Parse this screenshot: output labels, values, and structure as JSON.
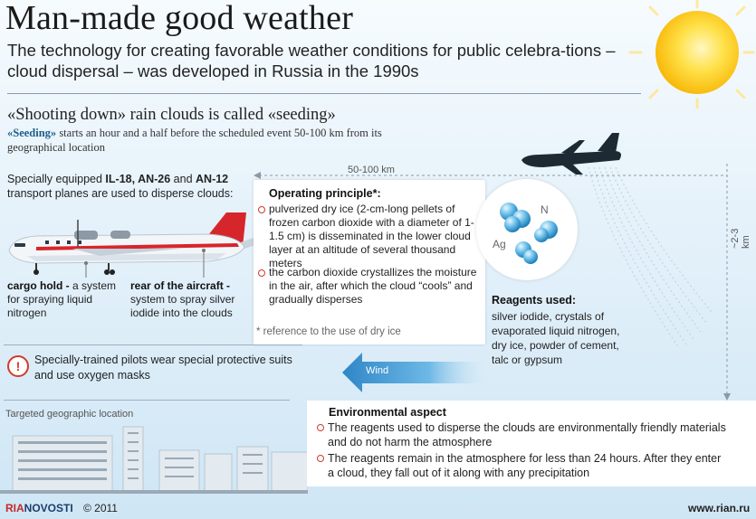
{
  "header": {
    "title": "Man-made good weather",
    "subtitle": "The technology for creating favorable weather conditions for public celebra-tions – cloud dispersal – was developed in Russia in the 1990s"
  },
  "seeding": {
    "heading": "«Shooting down» rain clouds is called «seeding»",
    "term": "«Seeding»",
    "text": " starts an hour and a half before the scheduled event 50-100 km from its geographical location"
  },
  "planes": {
    "intro_prefix": "Specially equipped ",
    "models": "IL-18, AN-26",
    "and": " and ",
    "model3": "AN-12",
    "intro_suffix": " transport planes are used to disperse clouds:"
  },
  "aircraft_labels": {
    "cargo_title": "cargo hold -",
    "cargo_text": " a system for spraying liquid nitrogen",
    "rear_title": "rear of the aircraft -",
    "rear_text": " system to spray silver iodide into the clouds"
  },
  "operating": {
    "title": "Operating principle*:",
    "item1": "pulverized dry ice (2-cm-long pellets of frozen carbon dioxide with a diameter of 1-1.5 cm) is disseminated in the lower cloud layer at an altitude of several thousand meters",
    "item2": "the carbon dioxide crystallizes the moisture in the air, after which the cloud “cools” and gradually disperses",
    "footnote": "* reference to the use of dry ice"
  },
  "molecule": {
    "n": "N",
    "ag": "Ag"
  },
  "reagents": {
    "title": "Reagents used:",
    "text": "silver iodide, crystals of evaporated liquid nitrogen, dry ice, powder of cement, talc or gypsum"
  },
  "measures": {
    "distance": "50-100 km",
    "altitude": "~2-3 km"
  },
  "warning": {
    "text": "Specially-trained pilots wear special protective suits and use oxygen masks"
  },
  "wind": {
    "label": "Wind"
  },
  "location": {
    "label": "Targeted geographic location"
  },
  "environment": {
    "title": "Environmental aspect",
    "item1": "The reagents used to disperse the clouds are environmentally friendly materials and do not harm the atmosphere",
    "item2": "The reagents remain in the atmosphere for less than 24 hours. After they enter a cloud, they fall out of it along with any precipitation"
  },
  "footer": {
    "brand_ria": "RIA",
    "brand_novosti": "NOVOSTI",
    "copyright": "© 2011",
    "url": "www.rian.ru"
  },
  "colors": {
    "accent_red": "#d23a2a",
    "sky_top": "#f6fbfe",
    "sky_bottom": "#cfe6f5",
    "wind_arrow": "#4a9fd8"
  }
}
